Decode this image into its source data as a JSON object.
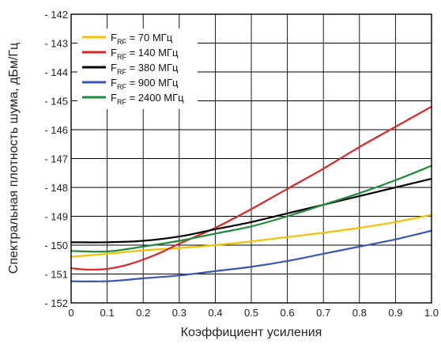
{
  "chart_data": {
    "type": "line",
    "xlabel": "Коэффициент усиления",
    "ylabel": "Спектральная плотность шума, дБм/Гц",
    "xlim": [
      0,
      1.0
    ],
    "ylim": [
      -152,
      -142
    ],
    "xticks": [
      "0",
      "0.1",
      "0.2",
      "0.3",
      "0.4",
      "0.5",
      "0.6",
      "0.7",
      "0.8",
      "0.9",
      "1.0"
    ],
    "yticks": [
      "- 142",
      "- 143",
      "- 144",
      "- 145",
      "- 146",
      "- 147",
      "- 148",
      "- 149",
      "- 150",
      "- 151",
      "- 152"
    ],
    "grid": true,
    "legend_position": "top-left",
    "series": [
      {
        "name": "F_RF = 70 МГц",
        "label_main": "F",
        "label_sub": "RF",
        "label_rest": " = 70 МГц",
        "color": "#f5c000",
        "x": [
          0,
          0.1,
          0.2,
          0.3,
          0.4,
          0.5,
          0.6,
          0.7,
          0.8,
          0.9,
          1.0
        ],
        "y": [
          -150.4,
          -150.3,
          -150.18,
          -150.1,
          -150.0,
          -149.87,
          -149.72,
          -149.57,
          -149.4,
          -149.2,
          -148.95
        ]
      },
      {
        "name": "F_RF = 140 МГц",
        "label_main": "F",
        "label_sub": "RF",
        "label_rest": " = 140 МГц",
        "color": "#e02424",
        "x": [
          0,
          0.05,
          0.1,
          0.15,
          0.2,
          0.25,
          0.3,
          0.4,
          0.5,
          0.6,
          0.7,
          0.8,
          0.9,
          1.0
        ],
        "y": [
          -150.8,
          -150.85,
          -150.82,
          -150.7,
          -150.5,
          -150.25,
          -149.95,
          -149.4,
          -148.75,
          -148.05,
          -147.35,
          -146.6,
          -145.9,
          -145.2
        ]
      },
      {
        "name": "F_RF = 380 МГц",
        "label_main": "F",
        "label_sub": "RF",
        "label_rest": " = 380 МГц",
        "color": "#000000",
        "x": [
          0,
          0.1,
          0.2,
          0.3,
          0.4,
          0.5,
          0.6,
          0.7,
          0.8,
          0.9,
          1.0
        ],
        "y": [
          -149.9,
          -149.9,
          -149.85,
          -149.7,
          -149.45,
          -149.2,
          -148.9,
          -148.6,
          -148.3,
          -148.0,
          -147.7
        ]
      },
      {
        "name": "F_RF = 900 МГц",
        "label_main": "F",
        "label_sub": "RF",
        "label_rest": " = 900 МГц",
        "color": "#3a56b4",
        "x": [
          0,
          0.1,
          0.2,
          0.3,
          0.4,
          0.5,
          0.6,
          0.7,
          0.8,
          0.9,
          1.0
        ],
        "y": [
          -151.25,
          -151.25,
          -151.15,
          -151.05,
          -150.9,
          -150.75,
          -150.55,
          -150.3,
          -150.05,
          -149.8,
          -149.5
        ]
      },
      {
        "name": "F_RF = 2400 МГц",
        "label_main": "F",
        "label_sub": "RF",
        "label_rest": " = 2400 МГц",
        "color": "#1e8a3c",
        "x": [
          0,
          0.1,
          0.2,
          0.3,
          0.4,
          0.5,
          0.6,
          0.7,
          0.8,
          0.9,
          1.0
        ],
        "y": [
          -150.2,
          -150.22,
          -150.05,
          -149.85,
          -149.6,
          -149.35,
          -149.0,
          -148.6,
          -148.2,
          -147.75,
          -147.25
        ]
      }
    ]
  }
}
